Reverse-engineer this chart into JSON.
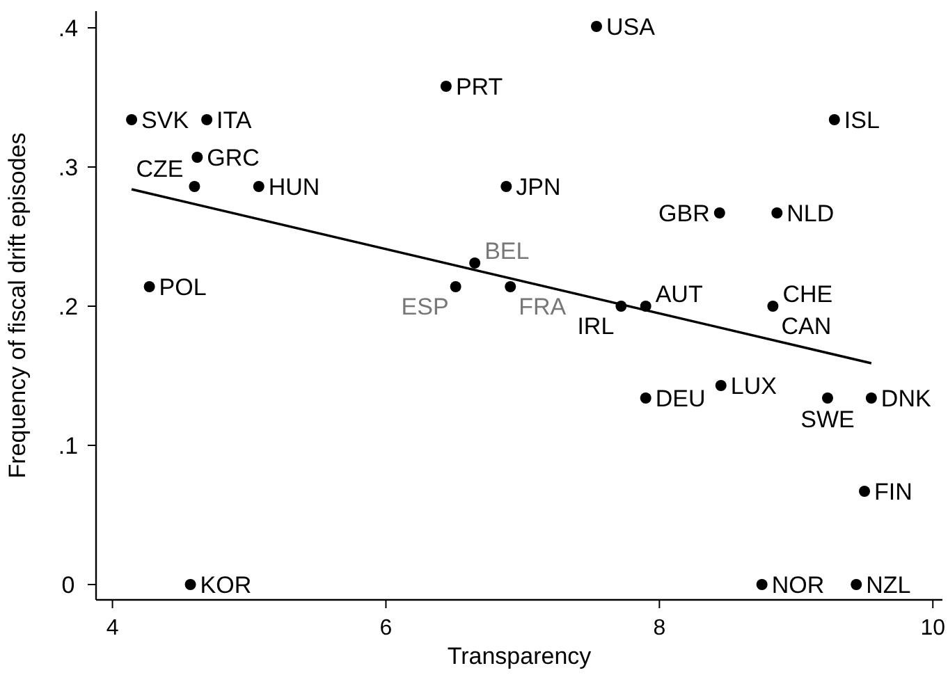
{
  "chart_data": {
    "type": "scatter",
    "xlabel": "Transparency",
    "ylabel": "Frequency of fiscal drift episodes",
    "xlim": [
      3.88,
      10.07
    ],
    "ylim": [
      -0.011,
      0.412
    ],
    "xticks": [
      4,
      6,
      8,
      10
    ],
    "yticks": [
      {
        "value": 0,
        "label": "0"
      },
      {
        "value": 0.1,
        "label": ".1"
      },
      {
        "value": 0.2,
        "label": ".2"
      },
      {
        "value": 0.3,
        "label": ".3"
      },
      {
        "value": 0.4,
        "label": ".4"
      }
    ],
    "grid": false,
    "series": [
      {
        "marker": "circle",
        "color": "#000000",
        "x": [
          7.54,
          6.44,
          4.14,
          4.69,
          4.62,
          4.6,
          5.07,
          6.88,
          9.28,
          8.44,
          8.86,
          4.27,
          6.65,
          6.51,
          6.91,
          7.72,
          7.9,
          8.83,
          7.9,
          8.45,
          9.23,
          9.55,
          9.5,
          8.75,
          9.44,
          4.57
        ],
        "values": [
          0.401,
          0.358,
          0.334,
          0.334,
          0.307,
          0.286,
          0.286,
          0.286,
          0.334,
          0.267,
          0.267,
          0.214,
          0.231,
          0.214,
          0.214,
          0.2,
          0.2,
          0.2,
          0.134,
          0.143,
          0.134,
          0.134,
          0.067,
          0,
          0,
          0
        ]
      },
      {
        "type": "line",
        "color": "#000000",
        "line_style": "solid",
        "marker": "none",
        "x": [
          4.14,
          9.55
        ],
        "values": [
          0.284,
          0.159
        ]
      }
    ],
    "annotations": [
      {
        "text": "USA",
        "x": 7.54,
        "y": 0.401
      },
      {
        "text": "PRT",
        "x": 6.44,
        "y": 0.358
      },
      {
        "text": "SVK",
        "x": 4.14,
        "y": 0.334
      },
      {
        "text": "ITA",
        "x": 4.69,
        "y": 0.334
      },
      {
        "text": "GRC",
        "x": 4.62,
        "y": 0.307
      },
      {
        "text": "CZE",
        "x": 4.6,
        "y": 0.286
      },
      {
        "text": "HUN",
        "x": 5.07,
        "y": 0.286
      },
      {
        "text": "JPN",
        "x": 6.88,
        "y": 0.286
      },
      {
        "text": "ISL",
        "x": 9.28,
        "y": 0.334
      },
      {
        "text": "GBR",
        "x": 8.44,
        "y": 0.267
      },
      {
        "text": "NLD",
        "x": 8.86,
        "y": 0.267
      },
      {
        "text": "POL",
        "x": 4.27,
        "y": 0.214
      },
      {
        "text": "BEL",
        "x": 6.65,
        "y": 0.231
      },
      {
        "text": "ESP",
        "x": 6.51,
        "y": 0.214
      },
      {
        "text": "FRA",
        "x": 6.91,
        "y": 0.214
      },
      {
        "text": "IRL",
        "x": 7.72,
        "y": 0.2
      },
      {
        "text": "AUT",
        "x": 7.9,
        "y": 0.2
      },
      {
        "text": "CHE",
        "x": 8.83,
        "y": 0.2
      },
      {
        "text": "CAN",
        "x": 8.83,
        "y": 0.2
      },
      {
        "text": "DEU",
        "x": 7.9,
        "y": 0.134
      },
      {
        "text": "LUX",
        "x": 8.45,
        "y": 0.143
      },
      {
        "text": "SWE",
        "x": 9.23,
        "y": 0.134
      },
      {
        "text": "DNK",
        "x": 9.55,
        "y": 0.134
      },
      {
        "text": "FIN",
        "x": 9.5,
        "y": 0.067
      },
      {
        "text": "NOR",
        "x": 8.75,
        "y": 0
      },
      {
        "text": "NZL",
        "x": 9.44,
        "y": 0
      },
      {
        "text": "KOR",
        "x": 4.57,
        "y": 0
      }
    ]
  }
}
